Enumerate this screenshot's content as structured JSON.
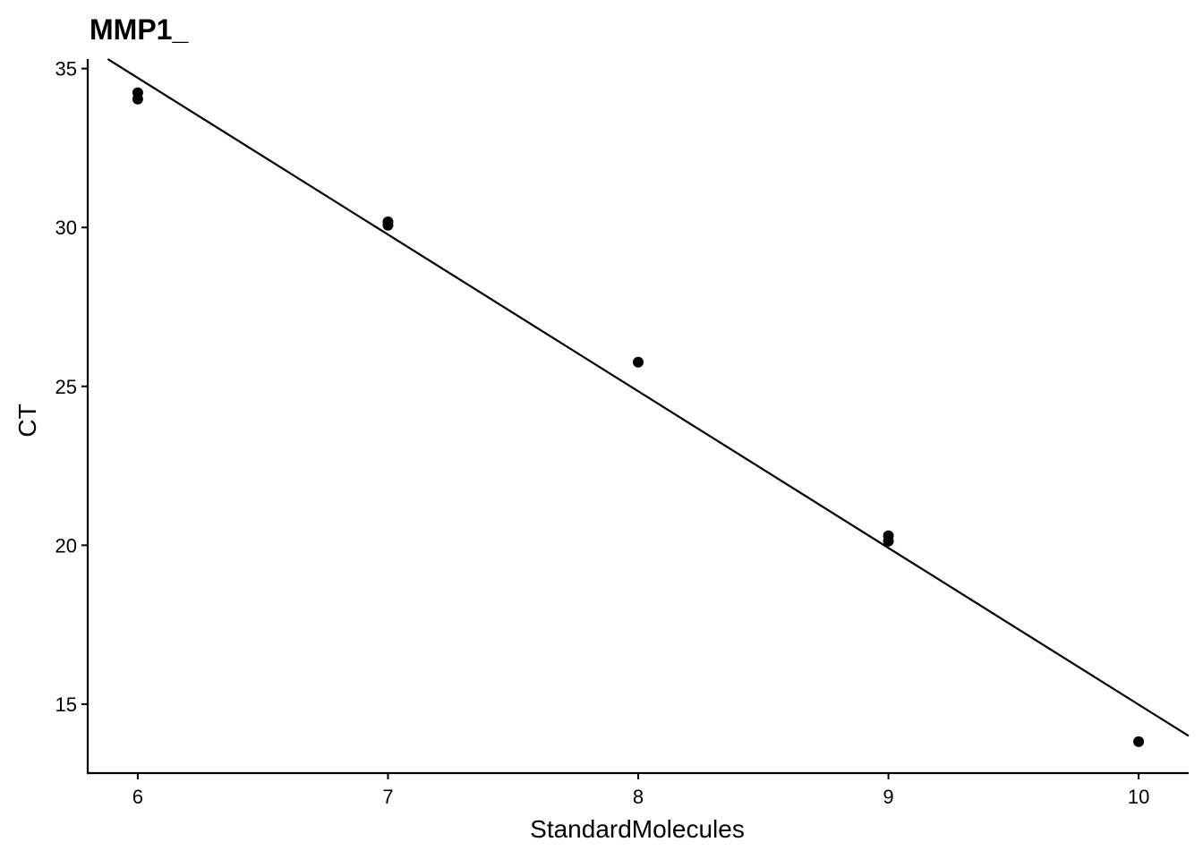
{
  "chart_data": {
    "type": "scatter",
    "title": "MMP1_",
    "x_label": "StandardMolecules",
    "y_label": "CT",
    "x": [
      6,
      6,
      7,
      7,
      8,
      9,
      9,
      10
    ],
    "values": [
      34.24,
      34.04,
      30.18,
      30.07,
      25.76,
      20.3,
      20.13,
      13.82
    ],
    "color": "#000000",
    "fit_line": {
      "x": [
        5.88,
        10.2
      ],
      "y": [
        35.3,
        14.0
      ],
      "color": "#000000"
    },
    "xlim": [
      5.8,
      10.2
    ],
    "ylim": [
      12.83,
      35.3
    ],
    "xticks": [
      6,
      7,
      8,
      9,
      10
    ],
    "yticks": [
      15,
      20,
      25,
      30,
      35
    ],
    "grid": false
  }
}
